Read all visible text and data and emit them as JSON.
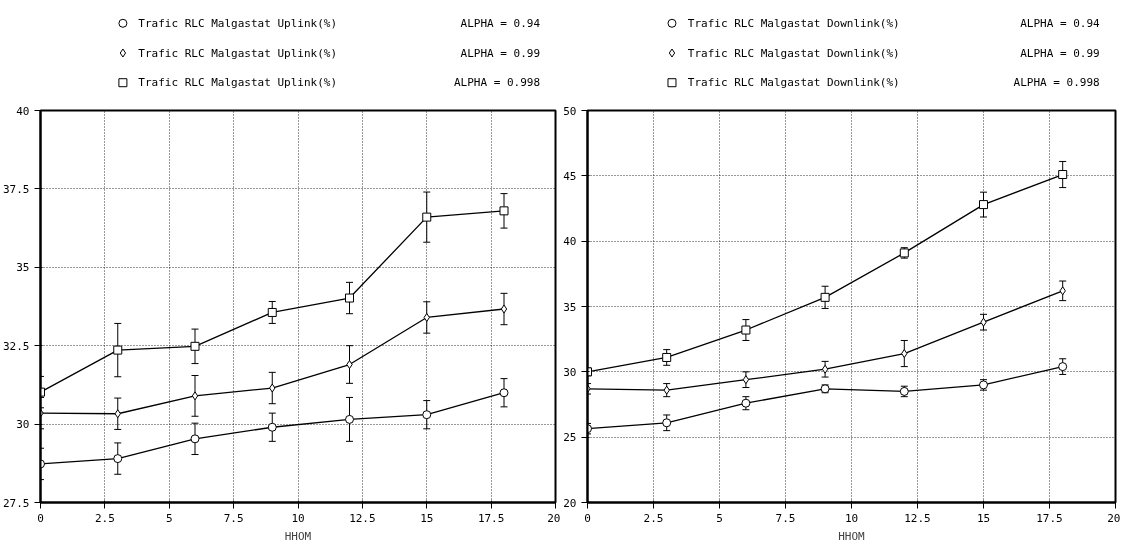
{
  "chart_data": [
    {
      "type": "line",
      "xlabel": "HHOM",
      "x": [
        0,
        3,
        6,
        9,
        12,
        15,
        18
      ],
      "xlim": [
        0,
        20
      ],
      "xticks": [
        0,
        2.5,
        5,
        7.5,
        10,
        12.5,
        15,
        17.5,
        20
      ],
      "ylim": [
        27.5,
        40
      ],
      "yticks": [
        27.5,
        30,
        32.5,
        35,
        37.5,
        40
      ],
      "grid": true,
      "legend": "top",
      "annotations": [
        "ALPHA = 0.94",
        "ALPHA = 0.99",
        "ALPHA = 0.998"
      ],
      "series": [
        {
          "name": "Trafic RLC Malgastat Uplink(%)",
          "color": "#000000",
          "marker": "circle",
          "values": [
            28.73,
            28.9,
            29.53,
            29.9,
            30.15,
            30.3,
            31.0
          ],
          "errors": [
            0.5,
            0.5,
            0.5,
            0.45,
            0.7,
            0.45,
            0.45
          ]
        },
        {
          "name": "Trafic RLC Malgastat Uplink(%)",
          "color": "#000000",
          "marker": "diamond",
          "values": [
            30.35,
            30.33,
            30.9,
            31.15,
            31.9,
            33.4,
            33.67
          ],
          "errors": [
            0.5,
            0.5,
            0.65,
            0.5,
            0.6,
            0.5,
            0.5
          ]
        },
        {
          "name": "Trafic RLC Malgastat Uplink(%)",
          "color": "#000000",
          "marker": "square",
          "values": [
            31.02,
            32.36,
            32.48,
            33.56,
            34.02,
            36.6,
            36.8
          ],
          "errors": [
            0.5,
            0.85,
            0.55,
            0.35,
            0.5,
            0.8,
            0.55
          ]
        }
      ]
    },
    {
      "type": "line",
      "xlabel": "HHOM",
      "x": [
        0,
        3,
        6,
        9,
        12,
        15,
        18
      ],
      "xlim": [
        0,
        20
      ],
      "xticks": [
        0,
        2.5,
        5,
        7.5,
        10,
        12.5,
        15,
        17.5,
        20
      ],
      "ylim": [
        20,
        50
      ],
      "yticks": [
        20,
        25,
        30,
        35,
        40,
        45,
        50
      ],
      "grid": true,
      "legend": "top",
      "annotations": [
        "ALPHA = 0.94",
        "ALPHA = 0.99",
        "ALPHA = 0.998"
      ],
      "series": [
        {
          "name": "Trafic RLC Malgastat Downlink(%)",
          "color": "#000000",
          "marker": "circle",
          "values": [
            25.65,
            26.1,
            27.6,
            28.7,
            28.5,
            29.0,
            30.4
          ],
          "errors": [
            0.4,
            0.6,
            0.5,
            0.3,
            0.4,
            0.4,
            0.6
          ]
        },
        {
          "name": "Trafic RLC Malgastat Downlink(%)",
          "color": "#000000",
          "marker": "diamond",
          "values": [
            28.7,
            28.6,
            29.4,
            30.2,
            31.4,
            33.8,
            36.2
          ],
          "errors": [
            0.4,
            0.5,
            0.6,
            0.6,
            1.0,
            0.6,
            0.75
          ]
        },
        {
          "name": "Trafic RLC Malgastat Downlink(%)",
          "color": "#000000",
          "marker": "square",
          "values": [
            30.0,
            31.1,
            33.2,
            35.7,
            39.1,
            42.8,
            45.1
          ],
          "errors": [
            0.3,
            0.6,
            0.8,
            0.85,
            0.4,
            0.95,
            1.0
          ]
        }
      ]
    }
  ]
}
